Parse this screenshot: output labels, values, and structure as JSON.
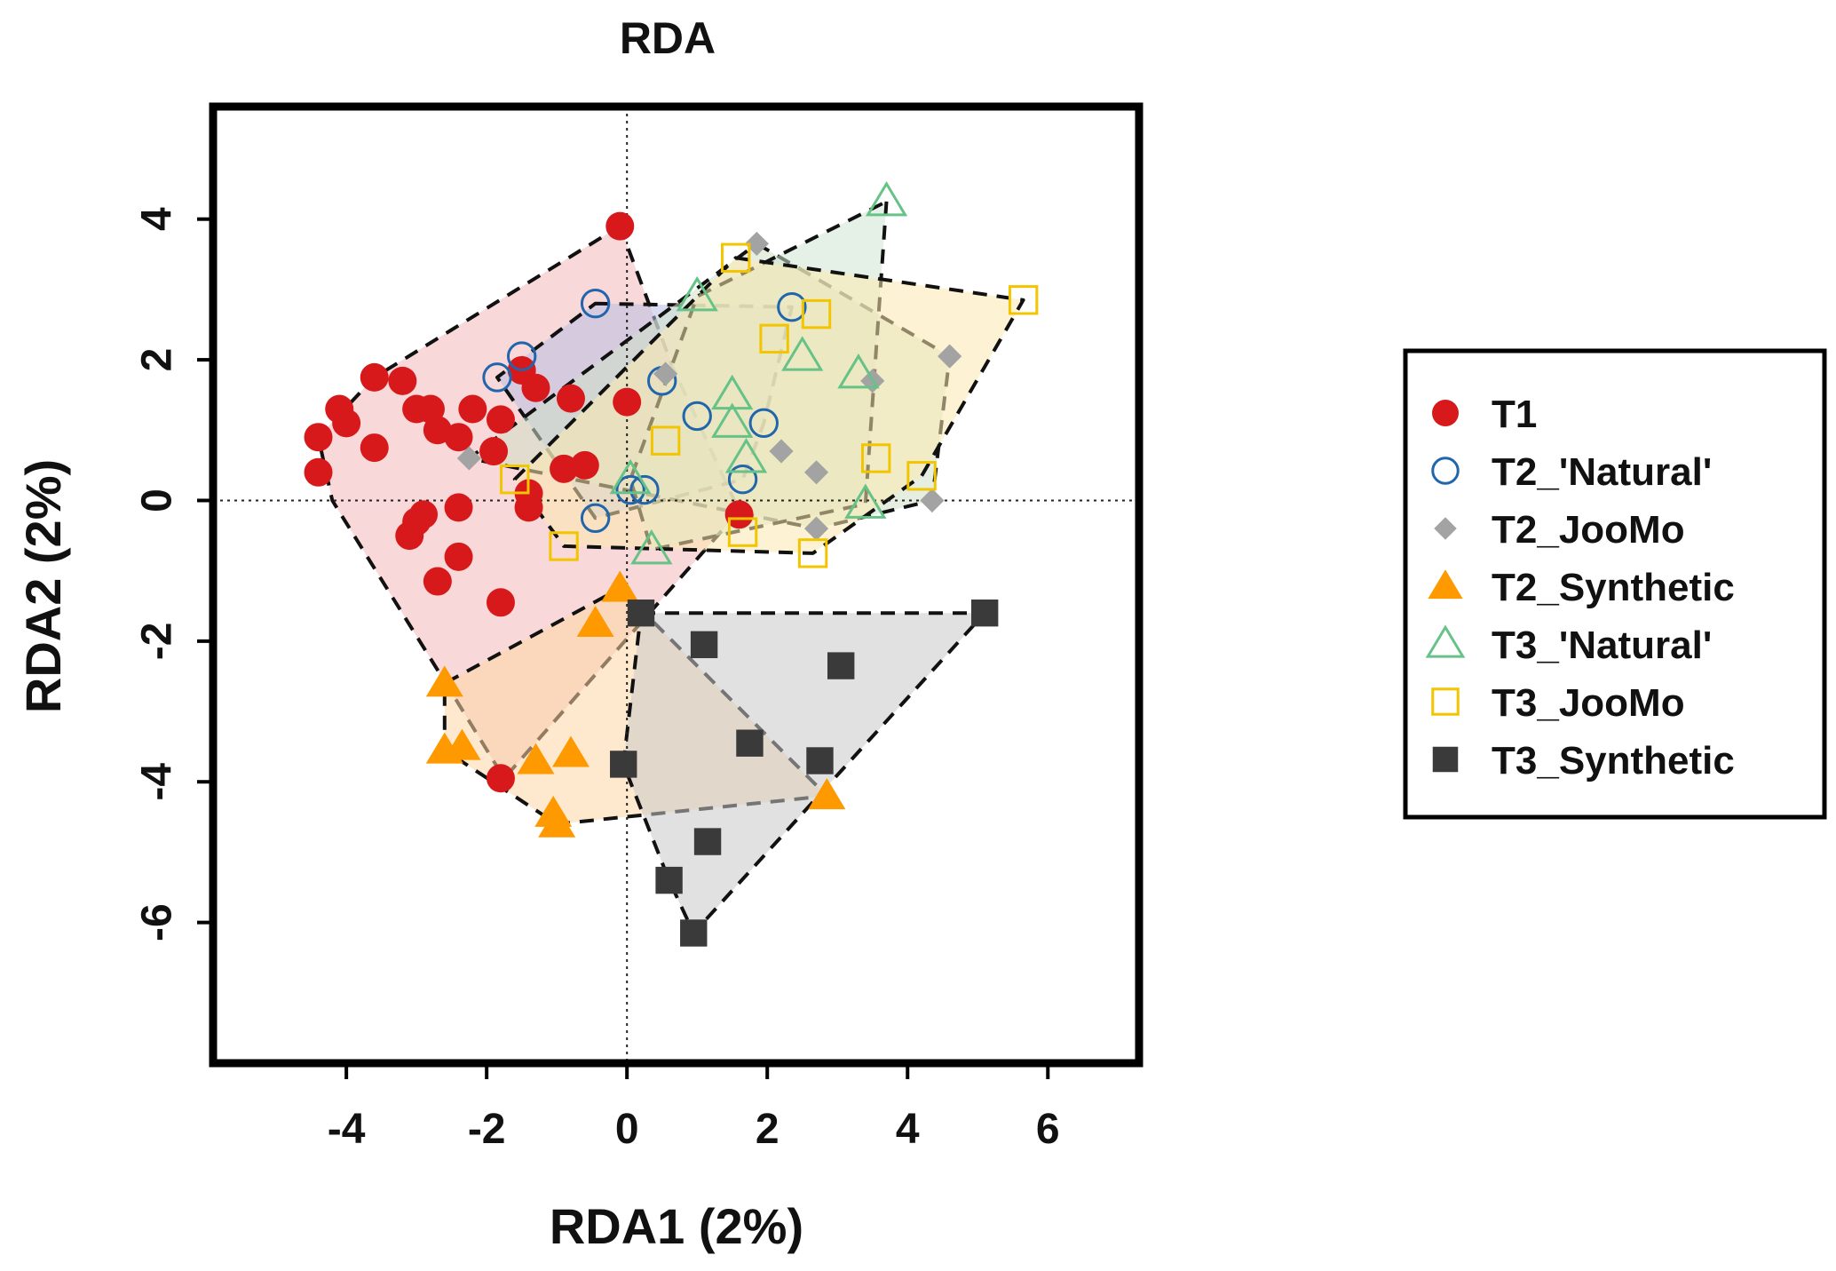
{
  "chart_data": {
    "type": "scatter",
    "title": "RDA",
    "xlabel": "RDA1 (2%)",
    "ylabel": "RDA2 (2%)",
    "xlim": [
      -5.9,
      7.3
    ],
    "ylim": [
      -8.0,
      5.6
    ],
    "xticks": [
      -4,
      -2,
      0,
      2,
      4,
      6
    ],
    "yticks": [
      -6,
      -4,
      -2,
      0,
      2,
      4
    ],
    "xtick_labels": [
      "-4",
      "-2",
      "0",
      "2",
      "4",
      "6"
    ],
    "ytick_labels": [
      "-6",
      "-4",
      "-2",
      "0",
      "2",
      "4"
    ],
    "reference_lines": {
      "x": 0,
      "y": 0
    },
    "legend_position": "right",
    "series": [
      {
        "name": "T1",
        "marker": "circle-filled",
        "color": "#d7191c",
        "hull_fill": "#f2b8b8",
        "hull_opacity": 0.55,
        "x": [
          -0.1,
          -4.4,
          -4.4,
          -4.1,
          -4.0,
          -3.6,
          -3.6,
          -3.2,
          -3.0,
          -2.8,
          -2.7,
          -2.4,
          -2.2,
          -1.9,
          -1.8,
          -1.5,
          -1.4,
          -1.3,
          -0.8,
          -0.6,
          -0.9,
          0.0,
          -1.4,
          -2.4,
          -2.9,
          -3.0,
          -3.1,
          -2.4,
          -2.7,
          -1.8,
          1.6,
          -1.8
        ],
        "y": [
          3.9,
          0.9,
          0.4,
          1.3,
          1.1,
          1.75,
          0.75,
          1.7,
          1.3,
          1.3,
          1.0,
          0.9,
          1.3,
          0.7,
          1.15,
          1.85,
          0.1,
          1.6,
          1.45,
          0.5,
          0.45,
          1.4,
          -0.1,
          -0.1,
          -0.2,
          -0.3,
          -0.5,
          -0.8,
          -1.15,
          -1.45,
          -0.2,
          -3.95
        ],
        "hull": [
          [
            -0.1,
            3.9
          ],
          [
            0.65,
            1.9
          ],
          [
            1.6,
            -0.15
          ],
          [
            -1.75,
            -3.95
          ],
          [
            -2.55,
            -2.65
          ],
          [
            -4.2,
            0.0
          ],
          [
            -4.4,
            0.9
          ],
          [
            -3.6,
            1.75
          ]
        ]
      },
      {
        "name": "T2_'Natural'",
        "marker": "circle-open",
        "color": "#2166ac",
        "hull_fill": "#b9bfe6",
        "hull_opacity": 0.55,
        "x": [
          -0.45,
          -1.5,
          -1.85,
          0.5,
          1.0,
          1.95,
          2.35,
          1.65,
          0.05,
          0.25,
          -0.45
        ],
        "y": [
          2.8,
          2.05,
          1.75,
          1.7,
          1.2,
          1.1,
          2.75,
          0.3,
          0.15,
          0.15,
          -0.25
        ],
        "hull": [
          [
            -0.45,
            2.8
          ],
          [
            2.35,
            2.75
          ],
          [
            1.95,
            1.1
          ],
          [
            1.65,
            0.3
          ],
          [
            -0.45,
            -0.25
          ],
          [
            -1.85,
            1.75
          ]
        ]
      },
      {
        "name": "T2_JooMo",
        "marker": "diamond-filled",
        "color": "#a3a3a3",
        "hull_fill": "#cfe0c8",
        "hull_opacity": 0.55,
        "x": [
          1.85,
          4.6,
          3.5,
          0.55,
          2.2,
          2.7,
          -2.25,
          4.35,
          2.7
        ],
        "y": [
          3.65,
          2.05,
          1.7,
          1.8,
          0.7,
          0.4,
          0.6,
          0.0,
          -0.4
        ],
        "hull": [
          [
            1.85,
            3.65
          ],
          [
            4.6,
            2.05
          ],
          [
            4.35,
            0.0
          ],
          [
            2.7,
            -0.4
          ],
          [
            -2.25,
            0.6
          ]
        ]
      },
      {
        "name": "T2_Synthetic",
        "marker": "triangle-filled",
        "color": "#ff9900",
        "hull_fill": "#fdd7a6",
        "hull_opacity": 0.55,
        "x": [
          -0.1,
          -0.45,
          -2.6,
          -2.6,
          -2.35,
          -1.3,
          -0.8,
          -1.05,
          -1.0,
          2.85
        ],
        "y": [
          -1.25,
          -1.75,
          -2.6,
          -3.55,
          -3.5,
          -3.7,
          -3.6,
          -4.45,
          -4.6,
          -4.2
        ],
        "hull": [
          [
            -0.1,
            -1.25
          ],
          [
            2.85,
            -4.2
          ],
          [
            -1.0,
            -4.6
          ],
          [
            -2.6,
            -3.55
          ],
          [
            -2.6,
            -2.6
          ]
        ]
      },
      {
        "name": "T3_'Natural'",
        "marker": "triangle-open",
        "color": "#66c287",
        "hull_fill": "#cfe6d2",
        "hull_opacity": 0.55,
        "x": [
          3.7,
          1.0,
          2.5,
          3.3,
          1.5,
          1.5,
          1.7,
          0.05,
          3.4,
          0.35
        ],
        "y": [
          4.25,
          2.9,
          2.05,
          1.8,
          1.5,
          1.1,
          0.6,
          0.3,
          -0.05,
          -0.7
        ],
        "hull": [
          [
            3.7,
            4.25
          ],
          [
            3.4,
            -0.05
          ],
          [
            0.35,
            -0.7
          ],
          [
            0.05,
            0.3
          ],
          [
            1.0,
            2.9
          ]
        ]
      },
      {
        "name": "T3_JooMo",
        "marker": "square-open",
        "color": "#f2c500",
        "hull_fill": "#fbeab0",
        "hull_opacity": 0.55,
        "x": [
          1.55,
          5.65,
          2.7,
          2.1,
          0.55,
          3.55,
          4.2,
          -1.6,
          -0.9,
          1.65,
          2.65
        ],
        "y": [
          3.45,
          2.85,
          2.65,
          2.3,
          0.85,
          0.6,
          0.35,
          0.3,
          -0.65,
          -0.45,
          -0.75
        ],
        "hull": [
          [
            1.55,
            3.45
          ],
          [
            5.65,
            2.85
          ],
          [
            4.2,
            0.35
          ],
          [
            2.65,
            -0.75
          ],
          [
            -0.9,
            -0.65
          ],
          [
            -1.6,
            0.3
          ]
        ]
      },
      {
        "name": "T3_Synthetic",
        "marker": "square-filled",
        "color": "#3a3a3a",
        "hull_fill": "#c8c8c8",
        "hull_opacity": 0.55,
        "x": [
          0.2,
          5.1,
          1.1,
          3.05,
          1.75,
          2.75,
          -0.05,
          1.15,
          0.6,
          0.95
        ],
        "y": [
          -1.6,
          -1.6,
          -2.05,
          -2.35,
          -3.45,
          -3.7,
          -3.75,
          -4.85,
          -5.4,
          -6.15
        ],
        "hull": [
          [
            0.2,
            -1.6
          ],
          [
            5.1,
            -1.6
          ],
          [
            0.95,
            -6.15
          ],
          [
            0.6,
            -5.4
          ],
          [
            -0.05,
            -3.75
          ]
        ]
      }
    ]
  }
}
